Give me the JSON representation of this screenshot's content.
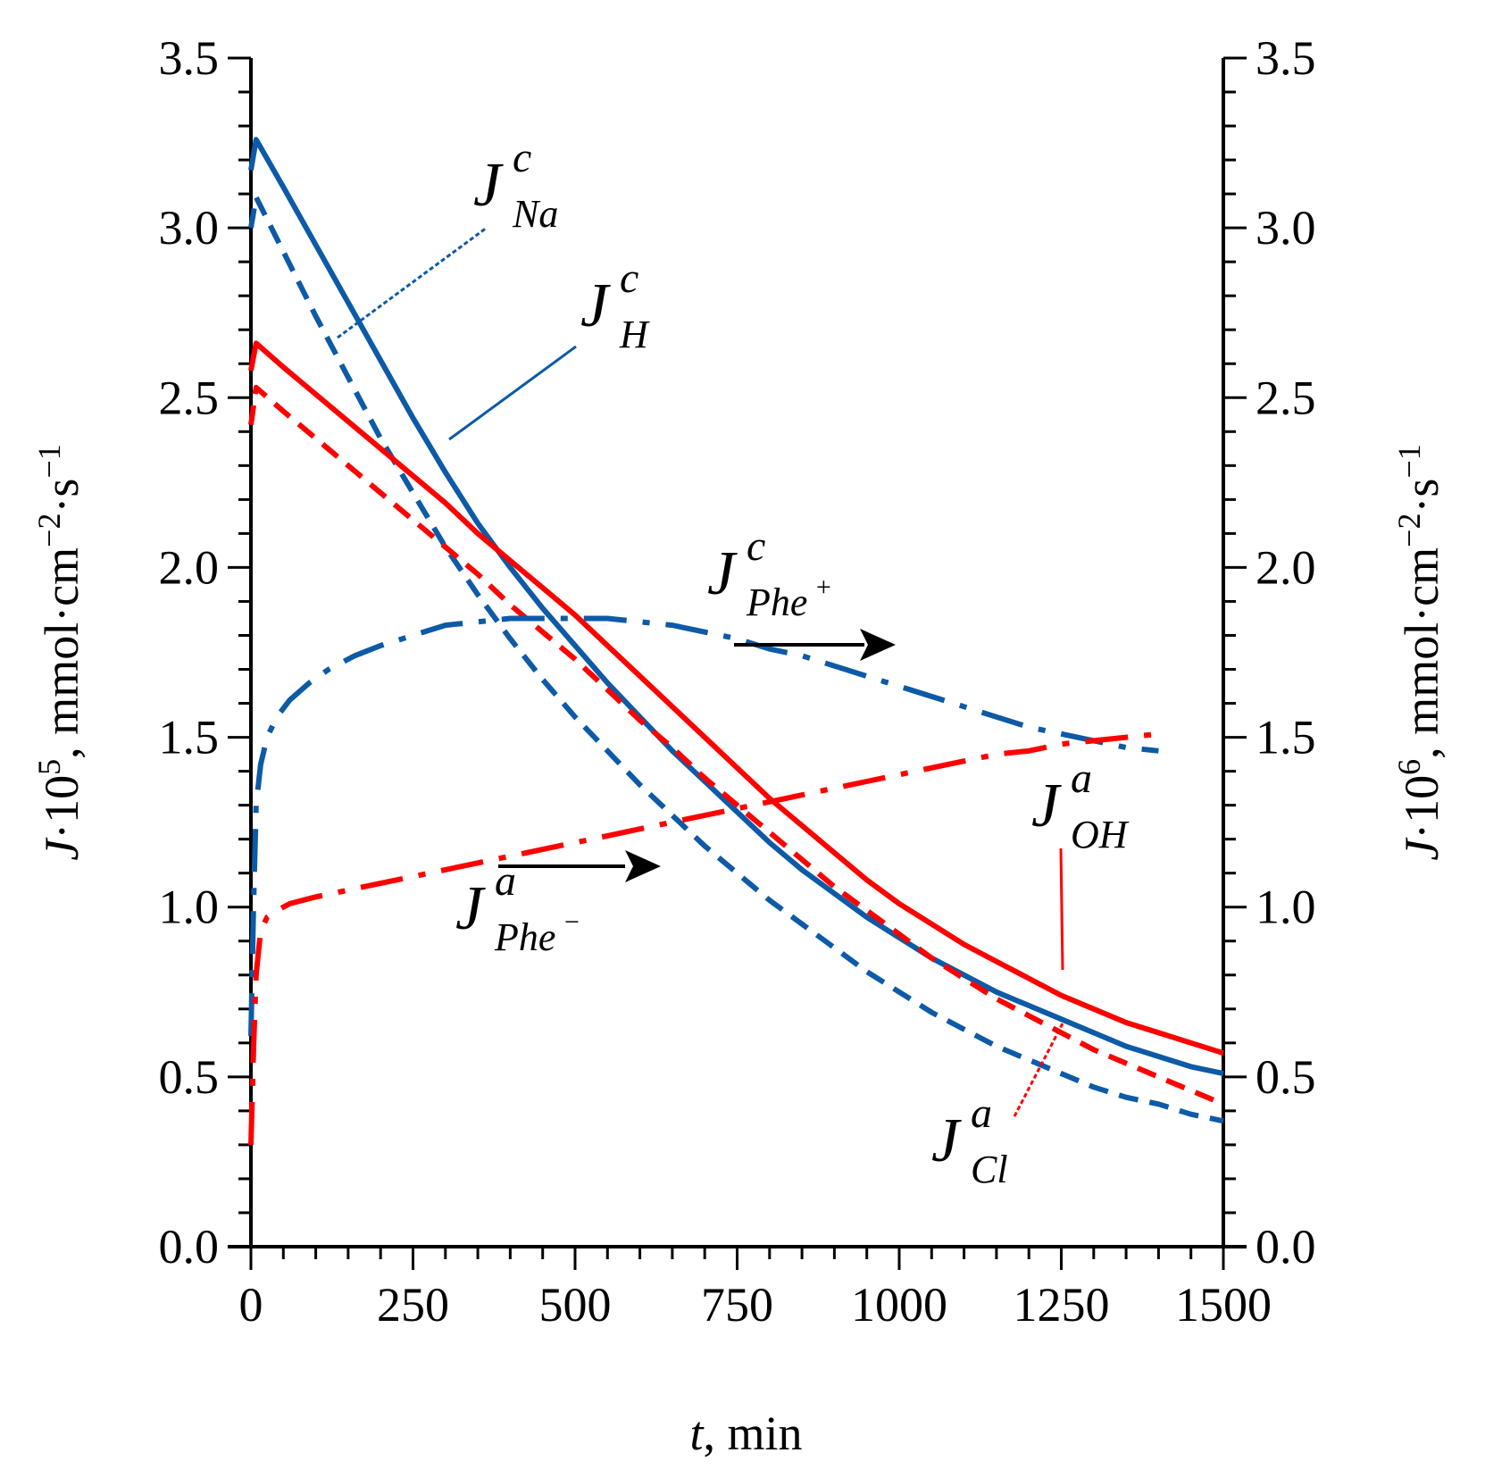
{
  "chart_data": {
    "type": "line",
    "xlabel": "t, min",
    "xlabel_parts": {
      "var": "t",
      "unit": ", min"
    },
    "ylabel_left": "J·10⁵, mmol·cm⁻²·s⁻¹",
    "ylabel_left_parts": {
      "var": "J",
      "pre": "·10",
      "exp": "5",
      "unit": ", mmol·cm",
      "exp2": "−2",
      "mid": "·s",
      "exp3": "−1"
    },
    "ylabel_right": "J·10⁶, mmol·cm⁻²·s⁻¹",
    "ylabel_right_parts": {
      "var": "J",
      "pre": "·10",
      "exp": "6",
      "unit": ", mmol·cm",
      "exp2": "−2",
      "mid": "·s",
      "exp3": "−1"
    },
    "xlim": [
      0,
      1500
    ],
    "ylim": [
      0,
      3.5
    ],
    "x_ticks": [
      0,
      250,
      500,
      750,
      1000,
      1250,
      1500
    ],
    "x_tick_labels": [
      "0",
      "250",
      "500",
      "750",
      "1000",
      "1250",
      "1500"
    ],
    "y_ticks": [
      0,
      0.5,
      1.0,
      1.5,
      2.0,
      2.5,
      3.0,
      3.5
    ],
    "y_tick_labels": [
      "0.0",
      "0.5",
      "1.0",
      "1.5",
      "2.0",
      "2.5",
      "3.0",
      "3.5"
    ],
    "colors": {
      "blue": "#0d5aa7",
      "red": "#ff0000",
      "black": "#000000"
    },
    "series": [
      {
        "name": "J_H^c",
        "color": "#0d5aa7",
        "style": "solid",
        "axis": "left",
        "x": [
          0,
          8,
          50,
          100,
          150,
          200,
          250,
          300,
          350,
          400,
          450,
          500,
          550,
          600,
          650,
          700,
          750,
          800,
          850,
          900,
          950,
          1000,
          1050,
          1100,
          1150,
          1200,
          1250,
          1300,
          1350,
          1400,
          1450,
          1500
        ],
        "y": [
          3.17,
          3.26,
          3.12,
          2.95,
          2.78,
          2.61,
          2.44,
          2.28,
          2.13,
          2.0,
          1.88,
          1.77,
          1.66,
          1.56,
          1.46,
          1.37,
          1.28,
          1.19,
          1.11,
          1.04,
          0.97,
          0.91,
          0.85,
          0.8,
          0.75,
          0.71,
          0.67,
          0.63,
          0.59,
          0.56,
          0.53,
          0.51
        ]
      },
      {
        "name": "J_Na^c",
        "color": "#0d5aa7",
        "style": "dashed",
        "axis": "left",
        "x": [
          0,
          8,
          50,
          100,
          150,
          200,
          250,
          300,
          350,
          400,
          450,
          500,
          550,
          600,
          650,
          700,
          750,
          800,
          850,
          900,
          950,
          1000,
          1050,
          1100,
          1150,
          1200,
          1250,
          1300,
          1350,
          1400,
          1450,
          1500
        ],
        "y": [
          3.0,
          3.09,
          2.93,
          2.74,
          2.56,
          2.38,
          2.22,
          2.06,
          1.92,
          1.79,
          1.67,
          1.56,
          1.46,
          1.36,
          1.27,
          1.18,
          1.1,
          1.02,
          0.95,
          0.88,
          0.81,
          0.75,
          0.69,
          0.64,
          0.59,
          0.55,
          0.51,
          0.47,
          0.44,
          0.42,
          0.39,
          0.37
        ]
      },
      {
        "name": "J_OH^a",
        "color": "#ff0000",
        "style": "solid",
        "axis": "left",
        "x": [
          0,
          8,
          50,
          100,
          150,
          200,
          250,
          300,
          350,
          400,
          450,
          500,
          550,
          600,
          650,
          700,
          750,
          800,
          850,
          900,
          950,
          1000,
          1050,
          1100,
          1150,
          1200,
          1250,
          1300,
          1350,
          1400,
          1450,
          1500
        ],
        "y": [
          2.58,
          2.66,
          2.59,
          2.51,
          2.43,
          2.35,
          2.27,
          2.19,
          2.1,
          2.02,
          1.94,
          1.86,
          1.77,
          1.68,
          1.59,
          1.5,
          1.41,
          1.32,
          1.24,
          1.16,
          1.08,
          1.01,
          0.95,
          0.89,
          0.84,
          0.79,
          0.74,
          0.7,
          0.66,
          0.63,
          0.6,
          0.57
        ]
      },
      {
        "name": "J_Cl^a",
        "color": "#ff0000",
        "style": "dashed",
        "axis": "left",
        "x": [
          0,
          8,
          50,
          100,
          150,
          200,
          250,
          300,
          350,
          400,
          450,
          500,
          550,
          600,
          650,
          700,
          750,
          800,
          850,
          900,
          950,
          1000,
          1050,
          1100,
          1150,
          1200,
          1250,
          1300,
          1350,
          1400,
          1450,
          1500
        ],
        "y": [
          2.42,
          2.53,
          2.46,
          2.38,
          2.3,
          2.22,
          2.14,
          2.06,
          1.98,
          1.89,
          1.81,
          1.73,
          1.64,
          1.55,
          1.47,
          1.38,
          1.3,
          1.22,
          1.14,
          1.06,
          0.99,
          0.92,
          0.85,
          0.79,
          0.73,
          0.68,
          0.63,
          0.58,
          0.54,
          0.5,
          0.46,
          0.42
        ]
      },
      {
        "name": "J_Phe+^c",
        "color": "#0d5aa7",
        "style": "dashdot",
        "axis": "right",
        "x": [
          0,
          4,
          8,
          15,
          25,
          40,
          60,
          90,
          120,
          160,
          200,
          250,
          300,
          350,
          400,
          450,
          500,
          550,
          600,
          650,
          700,
          750,
          800,
          850,
          900,
          950,
          1000,
          1050,
          1100,
          1150,
          1200,
          1250,
          1300,
          1350,
          1400
        ],
        "y": [
          0.62,
          1.0,
          1.3,
          1.42,
          1.5,
          1.56,
          1.61,
          1.66,
          1.7,
          1.74,
          1.77,
          1.8,
          1.83,
          1.84,
          1.85,
          1.85,
          1.85,
          1.85,
          1.84,
          1.83,
          1.81,
          1.79,
          1.76,
          1.74,
          1.71,
          1.68,
          1.65,
          1.62,
          1.59,
          1.56,
          1.53,
          1.51,
          1.49,
          1.47,
          1.46
        ]
      },
      {
        "name": "J_Phe-^a",
        "color": "#ff0000",
        "style": "dashdot",
        "axis": "right",
        "x": [
          0,
          4,
          8,
          15,
          25,
          40,
          60,
          100,
          150,
          200,
          250,
          300,
          350,
          400,
          450,
          500,
          550,
          600,
          650,
          700,
          750,
          800,
          850,
          900,
          950,
          1000,
          1050,
          1100,
          1150,
          1200,
          1250,
          1300,
          1350,
          1400
        ],
        "y": [
          0.3,
          0.58,
          0.8,
          0.93,
          0.97,
          0.99,
          1.01,
          1.03,
          1.05,
          1.07,
          1.09,
          1.11,
          1.13,
          1.15,
          1.17,
          1.19,
          1.21,
          1.23,
          1.25,
          1.27,
          1.29,
          1.31,
          1.33,
          1.35,
          1.37,
          1.39,
          1.41,
          1.43,
          1.45,
          1.46,
          1.48,
          1.49,
          1.5,
          1.51
        ]
      }
    ],
    "annotations": [
      {
        "base": "J",
        "sup": "c",
        "sub": "Na",
        "label": "J^c_Na"
      },
      {
        "base": "J",
        "sup": "c",
        "sub": "H",
        "label": "J^c_H"
      },
      {
        "base": "J",
        "sup": "c",
        "sub": "Phe",
        "sub_sup": "+",
        "label": "J^c_Phe+"
      },
      {
        "base": "J",
        "sup": "a",
        "sub": "Phe",
        "sub_sup": "−",
        "label": "J^a_Phe−"
      },
      {
        "base": "J",
        "sup": "a",
        "sub": "OH",
        "label": "J^a_OH"
      },
      {
        "base": "J",
        "sup": "a",
        "sub": "Cl",
        "label": "J^a_Cl"
      }
    ]
  }
}
